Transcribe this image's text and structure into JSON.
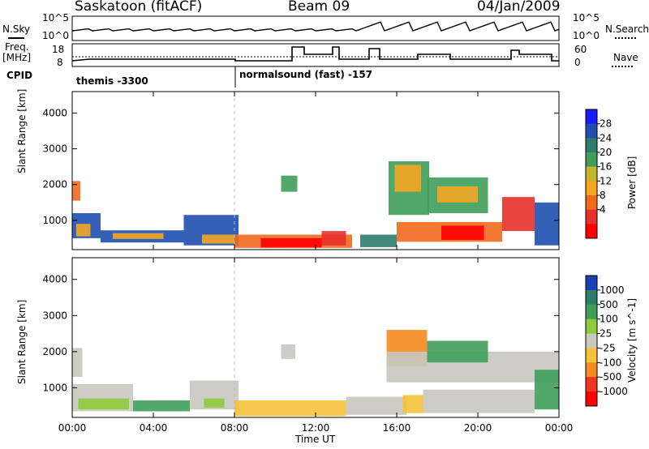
{
  "header": {
    "station": "Saskatoon (fitACF)",
    "beam": "Beam 09",
    "date": "04/Jan/2009"
  },
  "strip_panel": {
    "left_label_top": "N.Sky",
    "left_label_freq": "Freq.",
    "left_label_freq_unit": "[MHz]",
    "left_label_cpid": "CPID",
    "left_ticks_top": [
      "10^5",
      "10^0"
    ],
    "left_ticks_freq": [
      "18",
      "8"
    ],
    "right_ticks_top": [
      "10^5",
      "10^0"
    ],
    "right_ticks_freq": [
      "60",
      "0"
    ],
    "right_label_search": "N.Search",
    "right_label_nave": "Nave",
    "cpid_segments": [
      {
        "label": "themis -3300"
      },
      {
        "label": "normalsound (fast) -157"
      }
    ]
  },
  "chart_data": [
    {
      "type": "heatmap",
      "title": "",
      "xlabel": "Time UT",
      "ylabel": "Slant Range [km]",
      "x_ticks": [
        "00:00",
        "04:00",
        "08:00",
        "12:00",
        "16:00",
        "20:00",
        "00:00"
      ],
      "y_ticks": [
        "1000",
        "2000",
        "3000",
        "4000"
      ],
      "xlim": [
        0,
        24
      ],
      "ylim": [
        180,
        4600
      ],
      "colorbar_label": "Power [dB]",
      "colorbar_ticks": [
        "28",
        "24",
        "20",
        "16",
        "12",
        "8",
        "4"
      ],
      "colorbar_colors": [
        "#1a1aff",
        "#1f4fb0",
        "#2d7d6a",
        "#3f9f5a",
        "#c8b62a",
        "#f5a623",
        "#f06a1e",
        "#e8302a",
        "#ff0000"
      ],
      "regions": [
        {
          "t0": 0.0,
          "t1": 1.4,
          "r0": 500,
          "r1": 1200,
          "color": "#1f4fb0"
        },
        {
          "t0": 0.2,
          "t1": 0.9,
          "r0": 550,
          "r1": 900,
          "color": "#f5a623"
        },
        {
          "t0": 0.0,
          "t1": 0.4,
          "r0": 1550,
          "r1": 2100,
          "color": "#f06a1e"
        },
        {
          "t0": 1.4,
          "t1": 5.5,
          "r0": 380,
          "r1": 720,
          "color": "#1f4fb0"
        },
        {
          "t0": 2.0,
          "t1": 4.5,
          "r0": 480,
          "r1": 640,
          "color": "#f5a623"
        },
        {
          "t0": 5.5,
          "t1": 8.2,
          "r0": 300,
          "r1": 1150,
          "color": "#1f4fb0"
        },
        {
          "t0": 6.4,
          "t1": 8.0,
          "r0": 350,
          "r1": 600,
          "color": "#f5a623"
        },
        {
          "t0": 8.0,
          "t1": 13.8,
          "r0": 230,
          "r1": 600,
          "color": "#f06a1e"
        },
        {
          "t0": 9.3,
          "t1": 12.3,
          "r0": 240,
          "r1": 500,
          "color": "#ff0000"
        },
        {
          "t0": 12.3,
          "t1": 13.5,
          "r0": 300,
          "r1": 700,
          "color": "#e8302a"
        },
        {
          "t0": 10.3,
          "t1": 11.1,
          "r0": 1800,
          "r1": 2250,
          "color": "#3f9f5a"
        },
        {
          "t0": 14.2,
          "t1": 16.0,
          "r0": 250,
          "r1": 600,
          "color": "#2d7d6a"
        },
        {
          "t0": 15.6,
          "t1": 17.6,
          "r0": 1150,
          "r1": 2650,
          "color": "#3f9f5a"
        },
        {
          "t0": 15.9,
          "t1": 17.2,
          "r0": 1800,
          "r1": 2550,
          "color": "#f5a623"
        },
        {
          "t0": 17.5,
          "t1": 20.5,
          "r0": 1200,
          "r1": 2200,
          "color": "#3f9f5a"
        },
        {
          "t0": 18.0,
          "t1": 20.0,
          "r0": 1500,
          "r1": 1950,
          "color": "#f5a623"
        },
        {
          "t0": 16.0,
          "t1": 21.2,
          "r0": 400,
          "r1": 950,
          "color": "#f06a1e"
        },
        {
          "t0": 18.2,
          "t1": 20.3,
          "r0": 450,
          "r1": 850,
          "color": "#ff0000"
        },
        {
          "t0": 21.2,
          "t1": 22.8,
          "r0": 700,
          "r1": 1650,
          "color": "#e8302a"
        },
        {
          "t0": 22.8,
          "t1": 24.0,
          "r0": 300,
          "r1": 1500,
          "color": "#1f4fb0"
        }
      ]
    },
    {
      "type": "heatmap",
      "title": "",
      "xlabel": "Time UT",
      "ylabel": "Slant Range [km]",
      "x_ticks": [
        "00:00",
        "04:00",
        "08:00",
        "12:00",
        "16:00",
        "20:00",
        "00:00"
      ],
      "y_ticks": [
        "1000",
        "2000",
        "3000",
        "4000"
      ],
      "xlim": [
        0,
        24
      ],
      "ylim": [
        180,
        4600
      ],
      "colorbar_label": "Velocity [m s^-1]",
      "colorbar_ticks": [
        "1000",
        "500",
        "100",
        "25",
        "-25",
        "-100",
        "-500",
        "-1000"
      ],
      "colorbar_colors": [
        "#1a3fb8",
        "#2d7d6a",
        "#3f9f5a",
        "#8ccc3a",
        "#c8c8c0",
        "#f5c23a",
        "#f58a1e",
        "#f0361e",
        "#ff0000"
      ],
      "regions": [
        {
          "t0": 0.0,
          "t1": 0.5,
          "r0": 1300,
          "r1": 2100,
          "color": "#c8c8c0"
        },
        {
          "t0": 0.0,
          "t1": 3.0,
          "r0": 350,
          "r1": 1100,
          "color": "#c8c8c0"
        },
        {
          "t0": 0.3,
          "t1": 2.8,
          "r0": 400,
          "r1": 700,
          "color": "#8ccc3a"
        },
        {
          "t0": 3.0,
          "t1": 5.8,
          "r0": 350,
          "r1": 650,
          "color": "#3f9f5a"
        },
        {
          "t0": 5.8,
          "t1": 8.2,
          "r0": 400,
          "r1": 1200,
          "color": "#c8c8c0"
        },
        {
          "t0": 6.5,
          "t1": 7.5,
          "r0": 450,
          "r1": 700,
          "color": "#8ccc3a"
        },
        {
          "t0": 8.0,
          "t1": 13.5,
          "r0": 220,
          "r1": 650,
          "color": "#f5c23a"
        },
        {
          "t0": 13.5,
          "t1": 16.5,
          "r0": 250,
          "r1": 750,
          "color": "#c8c8c0"
        },
        {
          "t0": 10.3,
          "t1": 11.0,
          "r0": 1800,
          "r1": 2200,
          "color": "#c8c8c0"
        },
        {
          "t0": 15.5,
          "t1": 17.5,
          "r0": 1600,
          "r1": 2600,
          "color": "#f58a1e"
        },
        {
          "t0": 15.5,
          "t1": 24.0,
          "r0": 1150,
          "r1": 2000,
          "color": "#c8c8c0"
        },
        {
          "t0": 17.5,
          "t1": 20.5,
          "r0": 1700,
          "r1": 2300,
          "color": "#3f9f5a"
        },
        {
          "t0": 16.3,
          "t1": 17.3,
          "r0": 300,
          "r1": 800,
          "color": "#f5c23a"
        },
        {
          "t0": 17.3,
          "t1": 22.8,
          "r0": 300,
          "r1": 950,
          "color": "#c8c8c0"
        },
        {
          "t0": 22.8,
          "t1": 24.0,
          "r0": 400,
          "r1": 1500,
          "color": "#3f9f5a"
        }
      ]
    }
  ]
}
